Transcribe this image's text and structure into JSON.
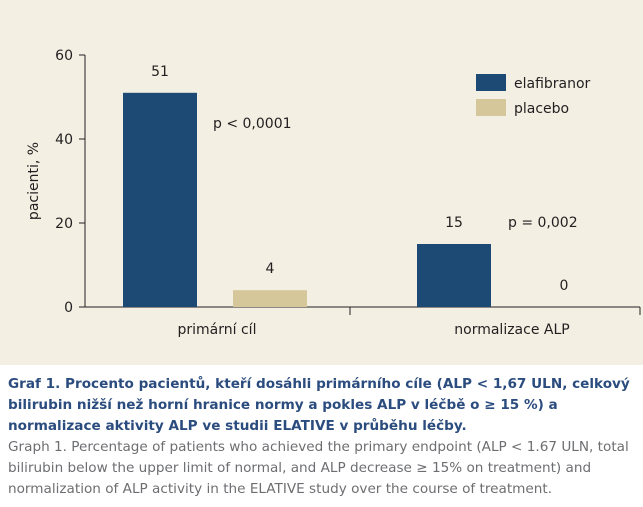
{
  "chart_data": {
    "type": "bar",
    "categories": [
      "primární cíl",
      "normalizace ALP"
    ],
    "series": [
      {
        "name": "elafibranor",
        "values": [
          51,
          15
        ],
        "color": "#1c4a75"
      },
      {
        "name": "placebo",
        "values": [
          4,
          0
        ],
        "color": "#d6c79a"
      }
    ],
    "value_labels": [
      [
        "51",
        "15"
      ],
      [
        "4",
        "0"
      ]
    ],
    "xlabel": "",
    "ylabel": "pacienti, %",
    "ylim": [
      0,
      60
    ],
    "yticks": [
      "0",
      "20",
      "40",
      "60"
    ],
    "legend_position": "top-right",
    "grid": false,
    "annotations": [
      "p < 0,0001",
      "p = 0,002"
    ]
  },
  "caption": {
    "czech": "Graf 1. Procento pacientů, kteří dosáhli primárního cíle (ALP < 1,67 ULN, celkový bilirubin nižší než horní hranice normy a pokles ALP v léčbě o ≥ 15 %) a normalizace aktivity ALP ve studii ELATIVE v průběhu léčby.",
    "english": "Graph 1. Percentage of patients who achieved the primary endpoint (ALP < 1.67 ULN, total bilirubin below the upper limit of normal, and ALP decrease ≥ 15% on treatment) and normalization of ALP activity in the ELATIVE study over the course of treatment."
  },
  "colors": {
    "panel_background": "#f3efe3",
    "caption_czech": "#2b4c7e",
    "caption_english": "#6d6e71"
  }
}
